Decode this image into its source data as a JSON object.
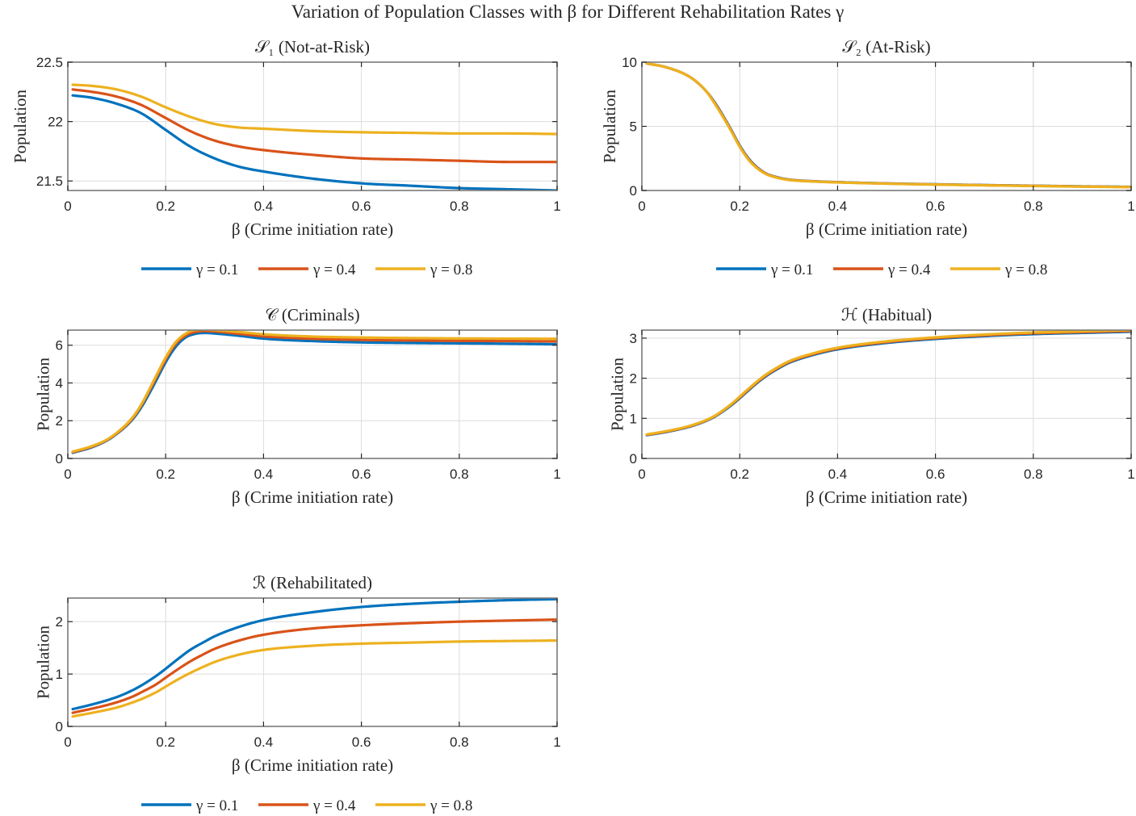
{
  "suptitle": "Variation of Population Classes with β for Different Rehabilitation Rates γ",
  "legend": {
    "entries": [
      {
        "label": "γ = 0.1",
        "color": "#0072BD"
      },
      {
        "label": "γ = 0.4",
        "color": "#D95319"
      },
      {
        "label": "γ = 0.8",
        "color": "#EDB120"
      }
    ]
  },
  "chart_data": [
    {
      "type": "line",
      "id": "S1",
      "title": "𝒮₁ (Not-at-Risk)",
      "xlabel": "β (Crime initiation rate)",
      "ylabel": "Population",
      "xlim": [
        0,
        1
      ],
      "ylim": [
        21.42,
        22.5
      ],
      "xticks": [
        0,
        0.2,
        0.4,
        0.6,
        0.8,
        1
      ],
      "xticklabels": [
        "0",
        "0.2",
        "0.4",
        "0.6",
        "0.8",
        "1"
      ],
      "yticks": [
        21.5,
        22,
        22.5
      ],
      "yticklabels": [
        "21.5",
        "22",
        "22.5"
      ],
      "grid": true,
      "legend": "below",
      "x": [
        0.01,
        0.05,
        0.1,
        0.15,
        0.2,
        0.25,
        0.3,
        0.35,
        0.4,
        0.5,
        0.6,
        0.7,
        0.8,
        0.9,
        1.0
      ],
      "series": [
        {
          "name": "γ = 0.1",
          "color": "#0072BD",
          "values": [
            22.22,
            22.2,
            22.15,
            22.07,
            21.93,
            21.79,
            21.69,
            21.62,
            21.58,
            21.52,
            21.48,
            21.46,
            21.44,
            21.43,
            21.42
          ]
        },
        {
          "name": "γ = 0.4",
          "color": "#D95319",
          "values": [
            22.27,
            22.25,
            22.21,
            22.14,
            22.03,
            21.92,
            21.84,
            21.79,
            21.76,
            21.72,
            21.69,
            21.68,
            21.67,
            21.66,
            21.66
          ]
        },
        {
          "name": "γ = 0.8",
          "color": "#EDB120",
          "values": [
            22.31,
            22.3,
            22.27,
            22.21,
            22.12,
            22.04,
            21.98,
            21.95,
            21.94,
            21.92,
            21.91,
            21.905,
            21.9,
            21.9,
            21.895
          ]
        }
      ]
    },
    {
      "type": "line",
      "id": "S2",
      "title": "𝒮₂ (At-Risk)",
      "xlabel": "β (Crime initiation rate)",
      "ylabel": "Population",
      "xlim": [
        0,
        1
      ],
      "ylim": [
        0,
        10
      ],
      "xticks": [
        0,
        0.2,
        0.4,
        0.6,
        0.8,
        1
      ],
      "xticklabels": [
        "0",
        "0.2",
        "0.4",
        "0.6",
        "0.8",
        "1"
      ],
      "yticks": [
        0,
        5,
        10
      ],
      "yticklabels": [
        "0",
        "5",
        "10"
      ],
      "grid": true,
      "legend": "below",
      "x": [
        0.01,
        0.05,
        0.1,
        0.13,
        0.15,
        0.18,
        0.2,
        0.22,
        0.25,
        0.28,
        0.3,
        0.35,
        0.4,
        0.5,
        0.6,
        0.7,
        0.8,
        0.9,
        1.0
      ],
      "series": [
        {
          "name": "γ = 0.1",
          "color": "#0072BD",
          "values": [
            9.9,
            9.6,
            8.8,
            7.8,
            6.8,
            4.9,
            3.5,
            2.4,
            1.4,
            1.0,
            0.85,
            0.72,
            0.65,
            0.55,
            0.48,
            0.42,
            0.37,
            0.32,
            0.28
          ]
        },
        {
          "name": "γ = 0.4",
          "color": "#D95319",
          "values": [
            9.9,
            9.6,
            8.8,
            7.8,
            6.75,
            4.85,
            3.45,
            2.35,
            1.38,
            0.98,
            0.84,
            0.71,
            0.64,
            0.54,
            0.47,
            0.41,
            0.36,
            0.31,
            0.27
          ]
        },
        {
          "name": "γ = 0.8",
          "color": "#EDB120",
          "values": [
            9.9,
            9.6,
            8.8,
            7.8,
            6.7,
            4.8,
            3.4,
            2.3,
            1.35,
            0.96,
            0.82,
            0.7,
            0.63,
            0.53,
            0.46,
            0.4,
            0.35,
            0.3,
            0.26
          ]
        }
      ]
    },
    {
      "type": "line",
      "id": "C",
      "title": "𝒞 (Criminals)",
      "xlabel": "β (Crime initiation rate)",
      "ylabel": "Population",
      "xlim": [
        0,
        1
      ],
      "ylim": [
        0,
        6.8
      ],
      "xticks": [
        0,
        0.2,
        0.4,
        0.6,
        0.8,
        1
      ],
      "xticklabels": [
        "0",
        "0.2",
        "0.4",
        "0.6",
        "0.8",
        "1"
      ],
      "yticks": [
        0,
        2,
        4,
        6
      ],
      "yticklabels": [
        "0",
        "2",
        "4",
        "6"
      ],
      "grid": true,
      "legend": "below",
      "x": [
        0.01,
        0.05,
        0.08,
        0.1,
        0.13,
        0.15,
        0.18,
        0.2,
        0.22,
        0.24,
        0.26,
        0.28,
        0.3,
        0.35,
        0.4,
        0.5,
        0.6,
        0.7,
        0.8,
        0.9,
        1.0
      ],
      "series": [
        {
          "name": "γ = 0.1",
          "color": "#0072BD",
          "values": [
            0.3,
            0.6,
            0.95,
            1.3,
            2.0,
            2.7,
            4.1,
            5.1,
            5.9,
            6.4,
            6.6,
            6.65,
            6.62,
            6.5,
            6.35,
            6.22,
            6.15,
            6.12,
            6.1,
            6.08,
            6.05
          ]
        },
        {
          "name": "γ = 0.4",
          "color": "#D95319",
          "values": [
            0.33,
            0.63,
            0.98,
            1.33,
            2.05,
            2.8,
            4.25,
            5.25,
            6.05,
            6.5,
            6.7,
            6.75,
            6.73,
            6.6,
            6.47,
            6.34,
            6.28,
            6.25,
            6.23,
            6.22,
            6.2
          ]
        },
        {
          "name": "γ = 0.8",
          "color": "#EDB120",
          "values": [
            0.36,
            0.66,
            1.0,
            1.36,
            2.1,
            2.85,
            4.35,
            5.35,
            6.15,
            6.6,
            6.8,
            6.82,
            6.8,
            6.7,
            6.58,
            6.46,
            6.41,
            6.38,
            6.36,
            6.35,
            6.34
          ]
        }
      ]
    },
    {
      "type": "line",
      "id": "H",
      "title": "ℋ (Habitual)",
      "xlabel": "β (Crime initiation rate)",
      "ylabel": "Population",
      "xlim": [
        0,
        1
      ],
      "ylim": [
        0,
        3.2
      ],
      "xticks": [
        0,
        0.2,
        0.4,
        0.6,
        0.8,
        1
      ],
      "xticklabels": [
        "0",
        "0.2",
        "0.4",
        "0.6",
        "0.8",
        "1"
      ],
      "yticks": [
        0,
        1,
        2,
        3
      ],
      "yticklabels": [
        "0",
        "1",
        "2",
        "3"
      ],
      "grid": true,
      "legend": "below",
      "x": [
        0.01,
        0.05,
        0.1,
        0.13,
        0.15,
        0.18,
        0.2,
        0.22,
        0.25,
        0.28,
        0.3,
        0.35,
        0.4,
        0.5,
        0.6,
        0.7,
        0.8,
        0.9,
        1.0
      ],
      "series": [
        {
          "name": "γ = 0.1",
          "color": "#0072BD",
          "values": [
            0.58,
            0.66,
            0.8,
            0.93,
            1.05,
            1.3,
            1.5,
            1.72,
            2.02,
            2.25,
            2.38,
            2.58,
            2.72,
            2.88,
            2.98,
            3.05,
            3.1,
            3.13,
            3.16
          ]
        },
        {
          "name": "γ = 0.4",
          "color": "#D95319",
          "values": [
            0.59,
            0.67,
            0.81,
            0.94,
            1.06,
            1.32,
            1.52,
            1.74,
            2.04,
            2.27,
            2.4,
            2.6,
            2.74,
            2.9,
            3.0,
            3.07,
            3.12,
            3.15,
            3.18
          ]
        },
        {
          "name": "γ = 0.8",
          "color": "#EDB120",
          "values": [
            0.6,
            0.68,
            0.82,
            0.95,
            1.07,
            1.33,
            1.54,
            1.76,
            2.06,
            2.29,
            2.42,
            2.62,
            2.76,
            2.92,
            3.02,
            3.09,
            3.14,
            3.17,
            3.2
          ]
        }
      ]
    },
    {
      "type": "line",
      "id": "R",
      "title": "ℛ (Rehabilitated)",
      "xlabel": "β (Crime initiation rate)",
      "ylabel": "Population",
      "xlim": [
        0,
        1
      ],
      "ylim": [
        0,
        2.45
      ],
      "xticks": [
        0,
        0.2,
        0.4,
        0.6,
        0.8,
        1
      ],
      "xticklabels": [
        "0",
        "0.2",
        "0.4",
        "0.6",
        "0.8",
        "1"
      ],
      "yticks": [
        0,
        1,
        2
      ],
      "yticklabels": [
        "0",
        "1",
        "2"
      ],
      "grid": true,
      "legend": "below",
      "x": [
        0.01,
        0.05,
        0.1,
        0.13,
        0.15,
        0.18,
        0.2,
        0.22,
        0.25,
        0.28,
        0.3,
        0.35,
        0.4,
        0.5,
        0.6,
        0.7,
        0.8,
        0.9,
        1.0
      ],
      "series": [
        {
          "name": "γ = 0.1",
          "color": "#0072BD",
          "values": [
            0.33,
            0.42,
            0.56,
            0.68,
            0.78,
            0.96,
            1.1,
            1.25,
            1.46,
            1.62,
            1.72,
            1.9,
            2.03,
            2.18,
            2.28,
            2.34,
            2.38,
            2.41,
            2.43
          ]
        },
        {
          "name": "γ = 0.4",
          "color": "#D95319",
          "values": [
            0.26,
            0.34,
            0.46,
            0.56,
            0.65,
            0.8,
            0.93,
            1.06,
            1.24,
            1.39,
            1.48,
            1.64,
            1.75,
            1.87,
            1.93,
            1.97,
            2.0,
            2.02,
            2.04
          ]
        },
        {
          "name": "γ = 0.8",
          "color": "#EDB120",
          "values": [
            0.19,
            0.26,
            0.36,
            0.45,
            0.52,
            0.65,
            0.76,
            0.87,
            1.02,
            1.15,
            1.23,
            1.37,
            1.46,
            1.54,
            1.58,
            1.6,
            1.62,
            1.63,
            1.64
          ]
        }
      ]
    }
  ]
}
